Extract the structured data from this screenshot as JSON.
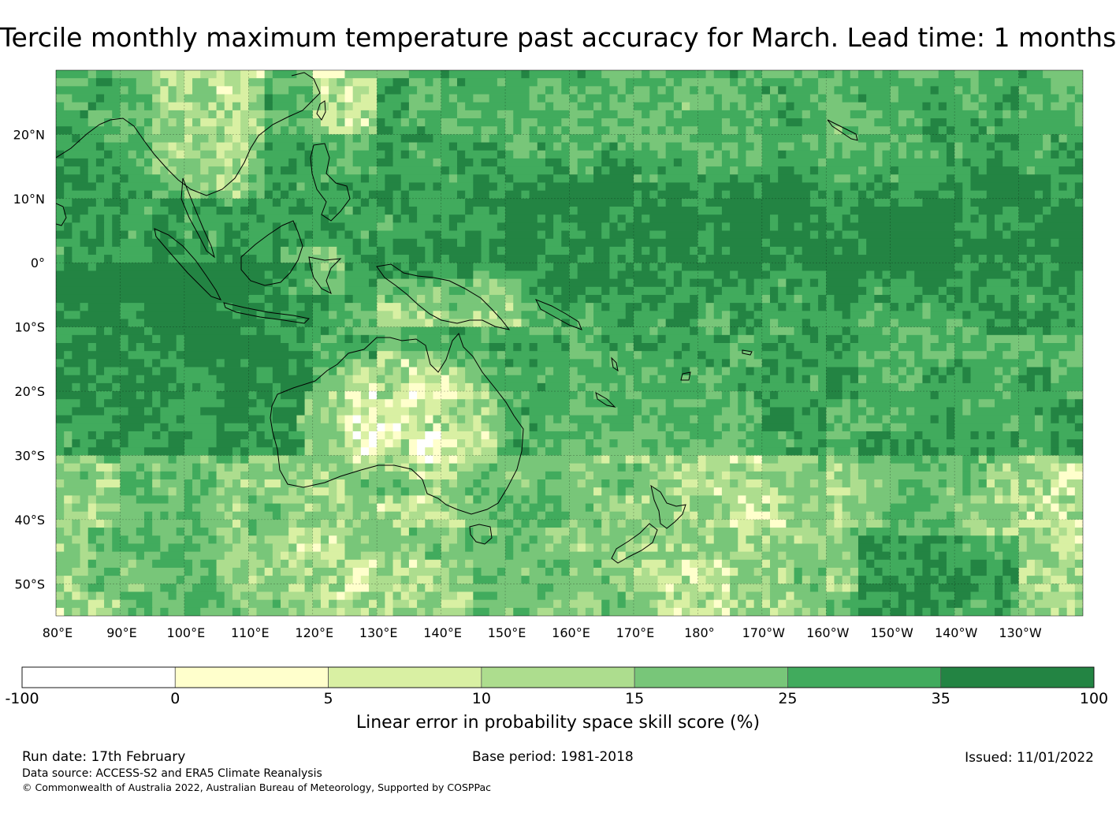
{
  "title": "Tercile monthly maximum temperature past accuracy for March. Lead time: 1 months",
  "map": {
    "lat_labels": [
      "20°N",
      "10°N",
      "0°",
      "10°S",
      "20°S",
      "30°S",
      "40°S",
      "50°S"
    ],
    "lon_labels": [
      "80°E",
      "90°E",
      "100°E",
      "110°E",
      "120°E",
      "130°E",
      "140°E",
      "150°E",
      "160°E",
      "170°E",
      "180°",
      "170°W",
      "160°W",
      "150°W",
      "140°W",
      "130°W"
    ],
    "lat_range": [
      -55,
      30
    ],
    "lon_range": [
      80,
      240
    ]
  },
  "colorbar": {
    "title": "Linear error in probability space skill score (%)",
    "bounds": [
      "-100",
      "0",
      "5",
      "10",
      "15",
      "25",
      "35",
      "100"
    ],
    "colors": [
      "#ffffff",
      "#ffffcc",
      "#d9f0a3",
      "#addd8e",
      "#78c679",
      "#41ab5d",
      "#238443"
    ]
  },
  "footer": {
    "run_date": "Run date: 17th February",
    "base_period": "Base period: 1981-2018",
    "issued": "Issued: 11/01/2022",
    "data_source": "Data source: ACCESS-S2 and ERA5 Climate Reanalysis",
    "copyright": "© Commonwealth of Australia 2022, Australian Bureau of Meteorology, Supported by COSPPac"
  }
}
